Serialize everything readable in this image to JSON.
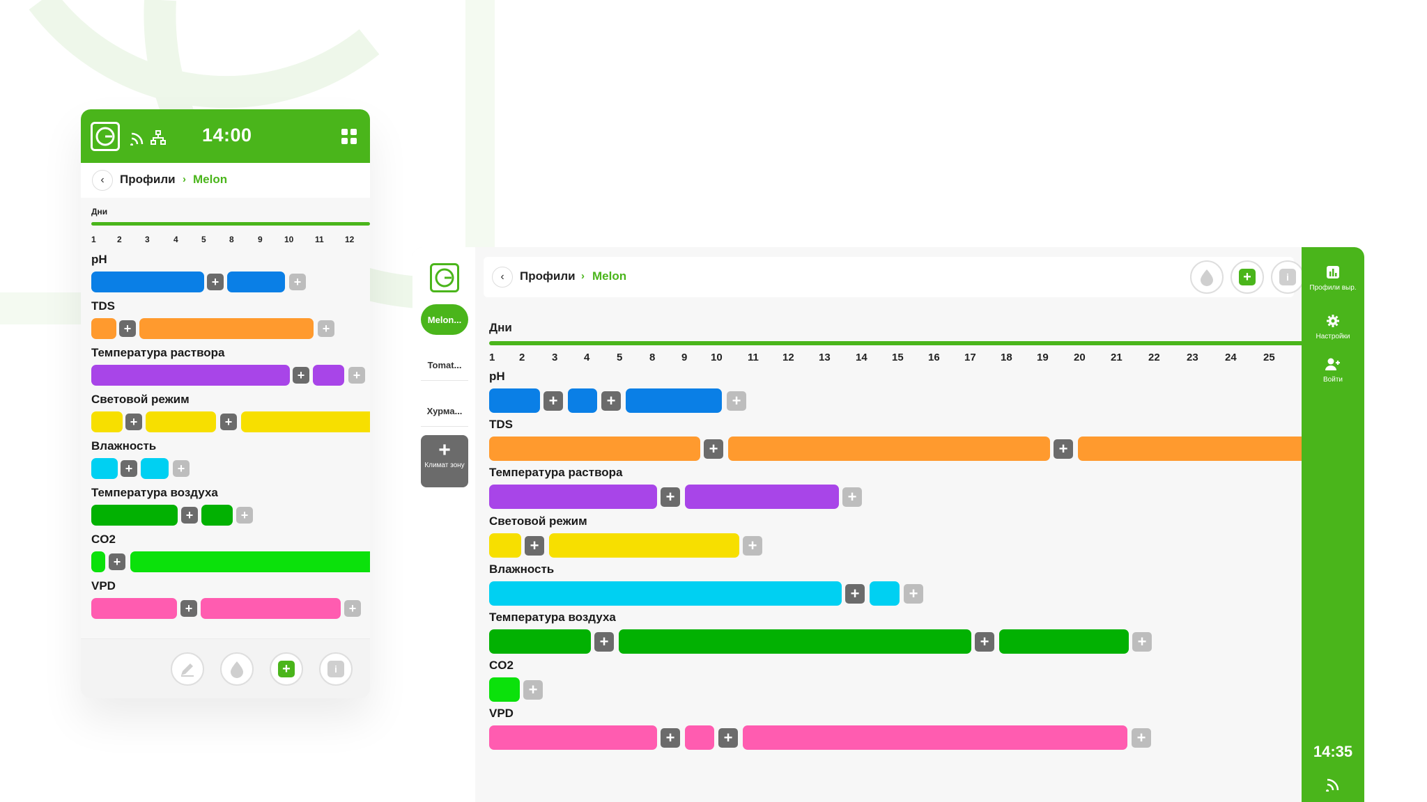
{
  "mobile": {
    "time": "14:00",
    "breadcrumb": {
      "root": "Профили",
      "separator": "›",
      "current": "Melon"
    },
    "days_label": "Дни",
    "days": [
      "1",
      "2",
      "3",
      "4",
      "5",
      "8",
      "9",
      "10",
      "11",
      "12"
    ],
    "rows": [
      {
        "label": "pH"
      },
      {
        "label": "TDS"
      },
      {
        "label": "Температура раствора"
      },
      {
        "label": "Световой режим"
      },
      {
        "label": "Влажность"
      },
      {
        "label": "Температура воздуха"
      },
      {
        "label": "CO2"
      },
      {
        "label": "VPD"
      }
    ],
    "footer_icons": [
      "pencil-icon",
      "drop-icon",
      "plus-icon",
      "info-icon"
    ]
  },
  "tablet": {
    "profiles": [
      "Melon...",
      "Tomat...",
      "Хурма..."
    ],
    "add_climate": {
      "plus": "+",
      "label": "Климат зону"
    },
    "breadcrumb": {
      "root": "Профили",
      "separator": "›",
      "current": "Melon"
    },
    "days_label": "Дни",
    "days": [
      "1",
      "2",
      "3",
      "4",
      "5",
      "8",
      "9",
      "10",
      "11",
      "12",
      "13",
      "14",
      "15",
      "16",
      "17",
      "18",
      "19",
      "20",
      "21",
      "22",
      "23",
      "24",
      "25"
    ],
    "rows": [
      {
        "label": "pH"
      },
      {
        "label": "TDS"
      },
      {
        "label": "Температура раствора"
      },
      {
        "label": "Световой режим"
      },
      {
        "label": "Влажность"
      },
      {
        "label": "Температура воздуха"
      },
      {
        "label": "CO2"
      },
      {
        "label": "VPD"
      }
    ],
    "right_nav": [
      {
        "label": "Профили выр.",
        "icon": "chart-icon"
      },
      {
        "label": "Настройки",
        "icon": "gear-icon"
      },
      {
        "label": "Войти",
        "icon": "user-add-icon"
      }
    ],
    "time": "14:35"
  },
  "colors": {
    "brand_green": "#4ab51b",
    "ph": "#0a7fe6",
    "tds": "#ff9a2e",
    "solution_temp": "#a845e8",
    "light": "#f7df00",
    "humidity": "#00d0f2",
    "air_temp": "#02b102",
    "co2": "#0be10b",
    "vpd": "#ff5cb0"
  }
}
